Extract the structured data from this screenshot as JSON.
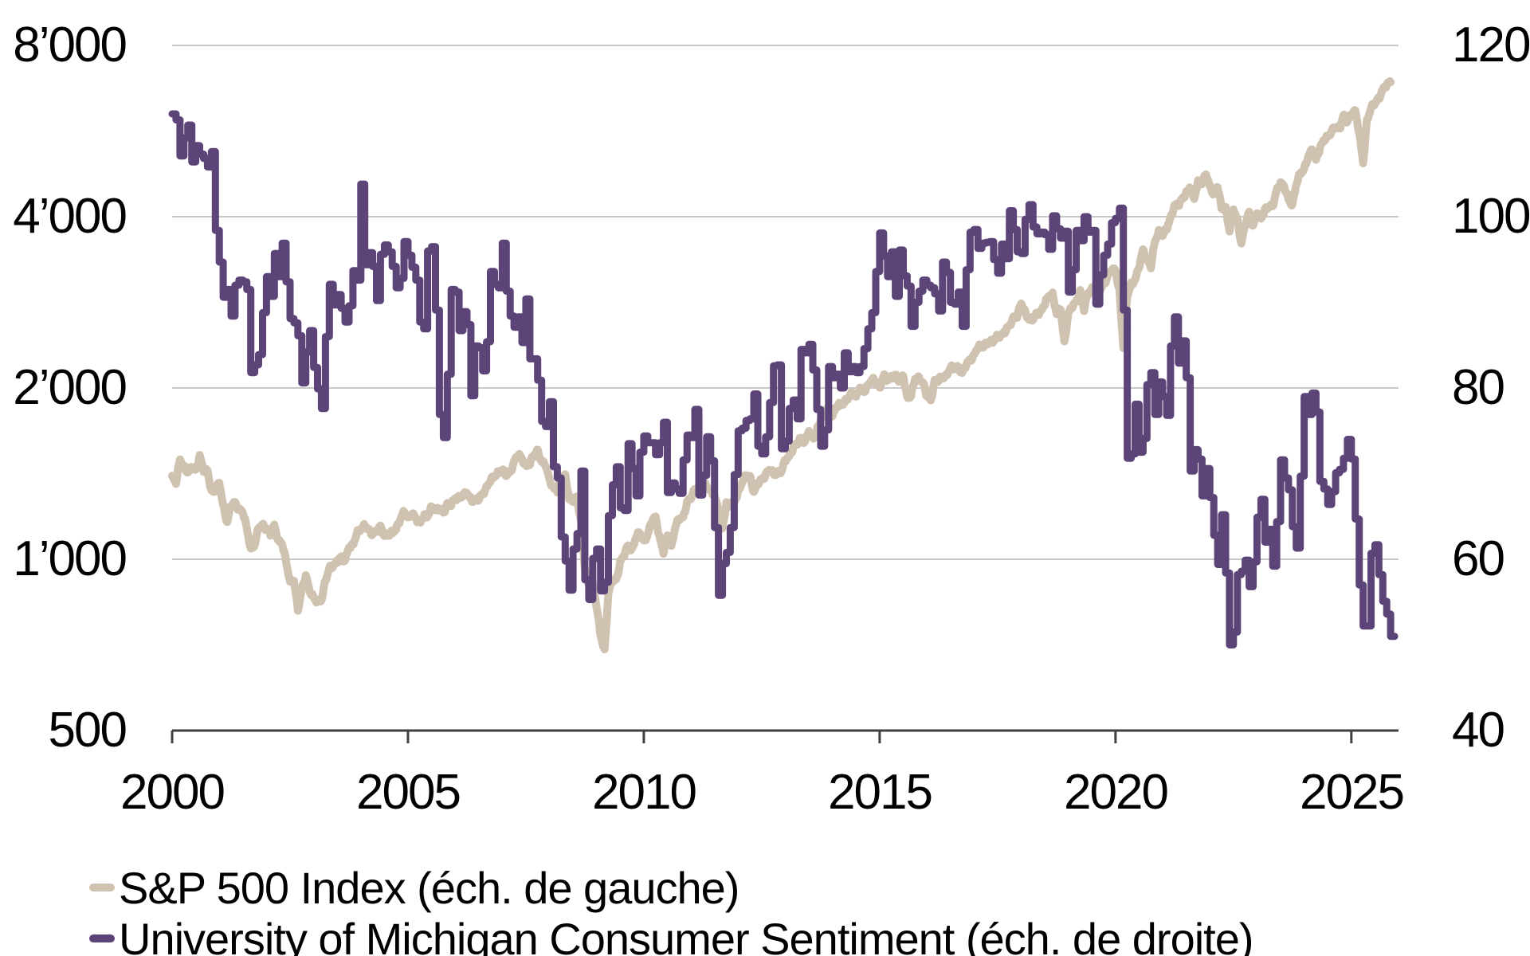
{
  "chart_data": {
    "type": "line",
    "title": "",
    "grid": true,
    "legend_position": "bottom-left",
    "x_axis": {
      "range": [
        2000,
        2026
      ],
      "ticks": [
        2000,
        2005,
        2010,
        2015,
        2020,
        2025
      ],
      "tick_labels": [
        "2000",
        "2005",
        "2010",
        "2015",
        "2020",
        "2025"
      ]
    },
    "left_axis": {
      "scale": "log",
      "range": [
        500,
        8000
      ],
      "gridline_values": [
        8000,
        4000,
        2000,
        1000
      ],
      "tick_labels": [
        "8’000",
        "4’000",
        "2’000",
        "1’000",
        "500"
      ]
    },
    "right_axis": {
      "scale": "linear",
      "range": [
        40,
        120
      ],
      "tick_labels": [
        "120",
        "100",
        "80",
        "60",
        "40"
      ]
    },
    "colors": {
      "sp500": "#d0c2b0",
      "sentiment": "#5c4378",
      "gridline": "#c8c8c8",
      "axis": "#3f3f3f",
      "text": "#000000"
    },
    "series": [
      {
        "name": "S&P 500 Index (éch. de gauche)",
        "axis": "left",
        "style": "line",
        "color": "#d0c2b0",
        "x_start": 2000,
        "interval_months": 1,
        "values": [
          1394,
          1366,
          1499,
          1452,
          1421,
          1455,
          1431,
          1518,
          1436,
          1429,
          1315,
          1320,
          1366,
          1240,
          1160,
          1249,
          1256,
          1224,
          1211,
          1134,
          1041,
          1060,
          1139,
          1148,
          1130,
          1107,
          1147,
          1077,
          1067,
          990,
          912,
          916,
          815,
          886,
          936,
          880,
          856,
          841,
          848,
          917,
          964,
          975,
          990,
          1008,
          996,
          1051,
          1058,
          1112,
          1131,
          1145,
          1126,
          1107,
          1121,
          1141,
          1102,
          1104,
          1115,
          1130,
          1174,
          1212,
          1181,
          1204,
          1181,
          1157,
          1192,
          1191,
          1234,
          1220,
          1229,
          1207,
          1249,
          1248,
          1280,
          1281,
          1295,
          1311,
          1270,
          1270,
          1277,
          1304,
          1336,
          1378,
          1401,
          1418,
          1438,
          1407,
          1421,
          1482,
          1531,
          1503,
          1455,
          1474,
          1527,
          1549,
          1481,
          1468,
          1379,
          1331,
          1323,
          1386,
          1400,
          1280,
          1267,
          1283,
          1166,
          969,
          896,
          903,
          826,
          735,
          690,
          873,
          919,
          919,
          987,
          1021,
          1057,
          1036,
          1096,
          1115,
          1074,
          1104,
          1169,
          1187,
          1089,
          1031,
          1102,
          1049,
          1141,
          1183,
          1181,
          1258,
          1286,
          1327,
          1326,
          1364,
          1345,
          1321,
          1292,
          1219,
          1131,
          1253,
          1247,
          1258,
          1312,
          1366,
          1408,
          1398,
          1310,
          1362,
          1379,
          1407,
          1441,
          1412,
          1416,
          1426,
          1498,
          1515,
          1569,
          1598,
          1631,
          1606,
          1686,
          1633,
          1682,
          1757,
          1806,
          1848,
          1783,
          1859,
          1872,
          1884,
          1924,
          1960,
          1931,
          2003,
          1972,
          2018,
          2068,
          2059,
          1995,
          2105,
          2068,
          2086,
          2107,
          2063,
          2104,
          1920,
          1940,
          2079,
          2080,
          2044,
          1940,
          1900,
          2060,
          2065,
          2097,
          2099,
          2174,
          2171,
          2168,
          2126,
          2199,
          2239,
          2279,
          2364,
          2363,
          2384,
          2412,
          2423,
          2470,
          2472,
          2519,
          2575,
          2648,
          2674,
          2824,
          2714,
          2641,
          2648,
          2705,
          2718,
          2816,
          2902,
          2914,
          2712,
          2760,
          2400,
          2704,
          2784,
          2834,
          2946,
          2752,
          2942,
          2980,
          2926,
          2977,
          3038,
          3141,
          3231,
          3226,
          2954,
          2365,
          2912,
          3044,
          3100,
          3271,
          3500,
          3363,
          3270,
          3622,
          3756,
          3714,
          3811,
          3973,
          4181,
          4204,
          4298,
          4395,
          4523,
          4308,
          4605,
          4567,
          4766,
          4516,
          4374,
          4530,
          4132,
          4132,
          3785,
          4130,
          3955,
          3586,
          3872,
          4080,
          3840,
          4077,
          3970,
          4109,
          4169,
          4180,
          4450,
          4589,
          4508,
          4288,
          4194,
          4568,
          4770,
          4846,
          5096,
          5254,
          5036,
          5278,
          5460,
          5522,
          5648,
          5762,
          5705,
          6032,
          5882,
          6041,
          6144,
          5612,
          4983,
          5912,
          6205,
          6339,
          6460,
          6688,
          6840,
          6900
        ]
      },
      {
        "name": "University of Michigan Consumer Sentiment (éch. de droite)",
        "axis": "right",
        "style": "step",
        "color": "#5c4378",
        "x_start": 2000,
        "interval_months": 1,
        "values": [
          112.0,
          111.3,
          107.1,
          109.2,
          110.7,
          106.4,
          108.3,
          107.3,
          106.8,
          105.8,
          107.6,
          98.4,
          94.7,
          90.6,
          91.5,
          88.4,
          92.0,
          92.6,
          92.4,
          91.5,
          81.8,
          82.7,
          83.9,
          88.8,
          93.0,
          90.7,
          95.7,
          93.0,
          96.9,
          92.4,
          88.1,
          87.6,
          86.1,
          80.6,
          84.2,
          86.7,
          82.4,
          79.9,
          77.6,
          86.0,
          92.1,
          89.7,
          90.9,
          89.3,
          87.7,
          89.6,
          93.7,
          92.6,
          103.8,
          94.4,
          95.8,
          94.2,
          90.2,
          95.6,
          96.7,
          95.9,
          94.2,
          91.7,
          92.8,
          97.1,
          95.5,
          94.1,
          92.6,
          87.7,
          86.9,
          96.0,
          96.5,
          89.1,
          76.9,
          74.2,
          81.6,
          91.5,
          91.2,
          86.7,
          88.9,
          87.4,
          79.1,
          84.9,
          84.7,
          82.0,
          85.4,
          93.6,
          92.1,
          91.7,
          96.9,
          91.3,
          88.4,
          87.1,
          88.3,
          85.3,
          90.4,
          83.4,
          83.4,
          80.9,
          76.1,
          75.5,
          78.4,
          70.8,
          69.5,
          62.6,
          59.8,
          56.4,
          61.2,
          63.0,
          70.3,
          57.6,
          55.3,
          60.1,
          61.2,
          56.3,
          57.3,
          65.1,
          68.7,
          70.8,
          66.0,
          65.7,
          73.5,
          70.6,
          67.4,
          72.5,
          74.4,
          73.6,
          73.6,
          72.2,
          73.6,
          76.0,
          67.8,
          68.9,
          68.2,
          67.7,
          71.6,
          74.5,
          74.2,
          77.5,
          67.5,
          69.8,
          74.3,
          71.5,
          63.7,
          55.8,
          59.5,
          60.8,
          63.7,
          69.9,
          75.0,
          75.3,
          76.2,
          76.4,
          79.3,
          73.2,
          72.3,
          74.3,
          78.3,
          82.6,
          82.7,
          72.9,
          73.8,
          77.6,
          78.6,
          76.4,
          84.5,
          84.1,
          85.1,
          82.1,
          77.5,
          73.2,
          75.1,
          82.5,
          81.2,
          81.6,
          80.0,
          84.1,
          81.9,
          82.5,
          81.8,
          82.5,
          84.6,
          86.9,
          88.8,
          93.6,
          98.1,
          95.4,
          93.0,
          95.9,
          90.7,
          96.1,
          93.1,
          91.9,
          87.2,
          90.0,
          91.3,
          92.6,
          92.0,
          91.7,
          91.0,
          89.0,
          94.7,
          93.5,
          90.0,
          89.8,
          91.2,
          87.2,
          93.8,
          98.2,
          98.5,
          96.3,
          96.9,
          97.0,
          97.1,
          95.0,
          93.4,
          96.8,
          95.1,
          100.7,
          98.5,
          95.9,
          95.7,
          99.7,
          101.4,
          98.8,
          98.0,
          98.2,
          97.9,
          96.2,
          100.1,
          98.6,
          97.5,
          98.3,
          91.2,
          93.8,
          98.4,
          97.2,
          100.0,
          98.2,
          98.4,
          89.8,
          93.2,
          95.5,
          96.8,
          99.3,
          99.8,
          101.0,
          89.1,
          71.8,
          72.3,
          78.1,
          72.5,
          74.1,
          80.4,
          81.8,
          76.9,
          80.7,
          79.0,
          76.8,
          84.9,
          88.3,
          82.9,
          85.5,
          81.2,
          70.3,
          72.8,
          71.7,
          67.4,
          70.6,
          67.2,
          62.8,
          59.4,
          65.2,
          58.4,
          50.0,
          51.5,
          58.2,
          58.6,
          59.9,
          56.8,
          59.7,
          64.9,
          67.0,
          62.0,
          63.5,
          59.2,
          64.4,
          71.6,
          69.5,
          68.1,
          63.8,
          61.3,
          69.7,
          79.0,
          76.9,
          79.4,
          77.2,
          69.1,
          68.2,
          66.4,
          67.9,
          70.1,
          70.5,
          71.8,
          74.0,
          71.7,
          64.7,
          57.0,
          52.2,
          52.2,
          60.7,
          61.7,
          58.2,
          55.1,
          53.6,
          51.0
        ]
      }
    ]
  }
}
